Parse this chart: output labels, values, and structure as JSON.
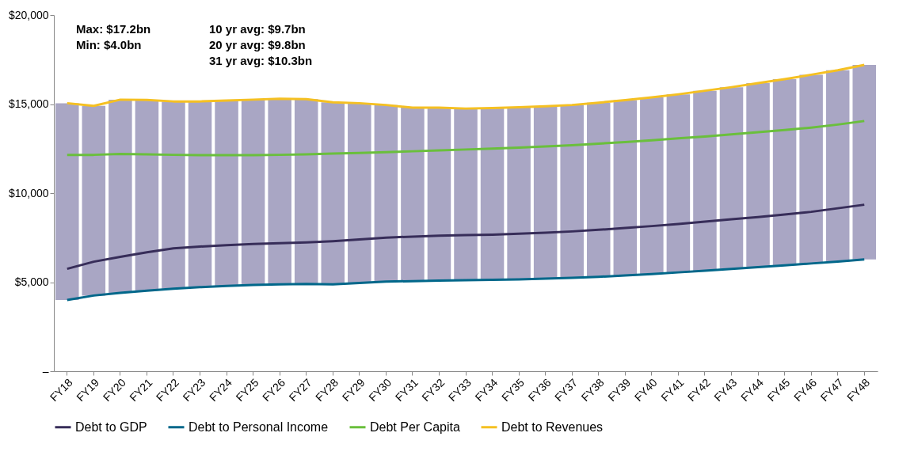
{
  "chart_data": {
    "type": "line",
    "categories": [
      "FY18",
      "FY19",
      "FY20",
      "FY21",
      "FY22",
      "FY23",
      "FY24",
      "FY25",
      "FY26",
      "FY27",
      "FY28",
      "FY29",
      "FY30",
      "FY31",
      "FY32",
      "FY33",
      "FY34",
      "FY35",
      "FY36",
      "FY37",
      "FY38",
      "FY39",
      "FY40",
      "FY41",
      "FY42",
      "FY43",
      "FY44",
      "FY45",
      "FY46",
      "FY47",
      "FY48"
    ],
    "series": [
      {
        "type": "bar",
        "color": "#a9a6c4",
        "base": [
          4000,
          4250,
          4400,
          4520,
          4630,
          4720,
          4790,
          4840,
          4880,
          4900,
          4880,
          4960,
          5030,
          5060,
          5090,
          5110,
          5130,
          5160,
          5200,
          5240,
          5300,
          5380,
          5460,
          5550,
          5640,
          5740,
          5840,
          5940,
          6050,
          6160,
          6280
        ],
        "values": [
          11050,
          10650,
          10850,
          10710,
          10520,
          10430,
          10410,
          10410,
          10420,
          10380,
          10220,
          10090,
          9920,
          9740,
          9710,
          9640,
          9650,
          9660,
          9680,
          9710,
          9780,
          9840,
          9920,
          10000,
          10110,
          10210,
          10340,
          10460,
          10600,
          10740,
          10920
        ]
      },
      {
        "name": "Debt to GDP",
        "color": "#372d59",
        "values": [
          5750,
          6150,
          6420,
          6680,
          6900,
          7000,
          7080,
          7140,
          7190,
          7230,
          7300,
          7400,
          7500,
          7560,
          7610,
          7640,
          7670,
          7720,
          7780,
          7850,
          7940,
          8040,
          8150,
          8270,
          8400,
          8530,
          8660,
          8800,
          8950,
          9150,
          9350
        ]
      },
      {
        "name": "Debt to Personal Income",
        "color": "#00678a",
        "values": [
          4000,
          4250,
          4400,
          4520,
          4630,
          4720,
          4790,
          4840,
          4880,
          4900,
          4880,
          4960,
          5030,
          5060,
          5090,
          5110,
          5130,
          5160,
          5200,
          5240,
          5300,
          5380,
          5460,
          5550,
          5640,
          5740,
          5840,
          5940,
          6050,
          6160,
          6280
        ]
      },
      {
        "name": "Debt Per Capita",
        "color": "#6abf3c",
        "values": [
          12150,
          12150,
          12200,
          12180,
          12150,
          12130,
          12130,
          12130,
          12150,
          12180,
          12220,
          12260,
          12300,
          12350,
          12400,
          12450,
          12500,
          12560,
          12620,
          12690,
          12780,
          12870,
          12970,
          13080,
          13180,
          13300,
          13420,
          13540,
          13680,
          13850,
          14050
        ]
      },
      {
        "name": "Debt to Revenues",
        "color": "#f5c022",
        "values": [
          15050,
          14900,
          15250,
          15230,
          15150,
          15150,
          15200,
          15250,
          15300,
          15280,
          15100,
          15050,
          14950,
          14800,
          14800,
          14750,
          14780,
          14820,
          14880,
          14950,
          15080,
          15220,
          15380,
          15550,
          15750,
          15950,
          16180,
          16400,
          16650,
          16900,
          17200
        ]
      }
    ],
    "ylim": [
      0,
      20000
    ],
    "yticks": [
      {
        "value": 0,
        "label": "–"
      },
      {
        "value": 5000,
        "label": "$5,000"
      },
      {
        "value": 10000,
        "label": "$10,000"
      },
      {
        "value": 15000,
        "label": "$15,000"
      },
      {
        "value": 20000,
        "label": "$20,000"
      }
    ],
    "grid": false,
    "legend": "bottom",
    "marker": "none",
    "line_style": "solid",
    "annotations": [
      "Max: $17.2bn",
      "Min:  $4.0bn",
      "10 yr avg: $9.7bn",
      "20 yr avg: $9.8bn",
      "31 yr avg: $10.3bn"
    ]
  }
}
